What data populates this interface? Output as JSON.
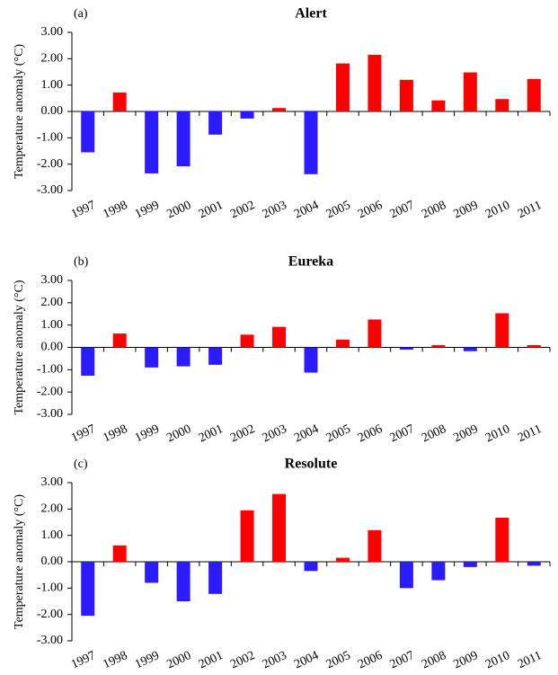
{
  "chart_data": [
    {
      "type": "bar",
      "label": "(a)",
      "title": "Alert",
      "y_label": "Temperature anomaly (°C)",
      "categories": [
        "1997",
        "1998",
        "1999",
        "2000",
        "2001",
        "2002",
        "2003",
        "2004",
        "2005",
        "2006",
        "2007",
        "2008",
        "2009",
        "2010",
        "2011"
      ],
      "values": [
        -1.55,
        0.72,
        -2.35,
        -2.08,
        -0.88,
        -0.27,
        0.13,
        -2.38,
        1.82,
        2.15,
        1.2,
        0.42,
        1.48,
        0.47,
        1.23
      ],
      "color_positive": "#ff0000",
      "color_negative": "#2b1cff",
      "ylim": [
        -3,
        3
      ],
      "yticks": [
        {
          "value": -3,
          "label": "-3.00"
        },
        {
          "value": -2,
          "label": "-2.00"
        },
        {
          "value": -1,
          "label": "-1.00"
        },
        {
          "value": 0,
          "label": "0.00"
        },
        {
          "value": 1,
          "label": "1.00"
        },
        {
          "value": 2,
          "label": "2.00"
        },
        {
          "value": 3,
          "label": "3.00"
        }
      ]
    },
    {
      "type": "bar",
      "label": "(b)",
      "title": "Eureka",
      "y_label": "Temperature anomaly (°C)",
      "categories": [
        "1997",
        "1998",
        "1999",
        "2000",
        "2001",
        "2002",
        "2003",
        "2004",
        "2005",
        "2006",
        "2007",
        "2008",
        "2009",
        "2010",
        "2011"
      ],
      "values": [
        -1.27,
        0.62,
        -0.9,
        -0.85,
        -0.78,
        0.57,
        0.92,
        -1.13,
        0.35,
        1.25,
        -0.1,
        0.1,
        -0.17,
        1.53,
        0.1
      ],
      "color_positive": "#ff0000",
      "color_negative": "#2b1cff",
      "ylim": [
        -3,
        3
      ],
      "yticks": [
        {
          "value": -3,
          "label": "-3.00"
        },
        {
          "value": -2,
          "label": "-2.00"
        },
        {
          "value": -1,
          "label": "-1.00"
        },
        {
          "value": 0,
          "label": "0.00"
        },
        {
          "value": 1,
          "label": "1.00"
        },
        {
          "value": 2,
          "label": "2.00"
        },
        {
          "value": 3,
          "label": "3.00"
        }
      ]
    },
    {
      "type": "bar",
      "label": "(c)",
      "title": "Resolute",
      "y_label": "Temperature anomaly (°C)",
      "categories": [
        "1997",
        "1998",
        "1999",
        "2000",
        "2001",
        "2002",
        "2003",
        "2004",
        "2005",
        "2006",
        "2007",
        "2008",
        "2009",
        "2010",
        "2011"
      ],
      "values": [
        -2.05,
        0.62,
        -0.8,
        -1.5,
        -1.22,
        1.95,
        2.57,
        -0.35,
        0.15,
        1.2,
        -1.0,
        -0.7,
        -0.2,
        1.67,
        -0.15
      ],
      "color_positive": "#ff0000",
      "color_negative": "#2b1cff",
      "ylim": [
        -3,
        3
      ],
      "yticks": [
        {
          "value": -3,
          "label": "-3.00"
        },
        {
          "value": -2,
          "label": "-2.00"
        },
        {
          "value": -1,
          "label": "-1.00"
        },
        {
          "value": 0,
          "label": "0.00"
        },
        {
          "value": 1,
          "label": "1.00"
        },
        {
          "value": 2,
          "label": "2.00"
        },
        {
          "value": 3,
          "label": "3.00"
        }
      ]
    }
  ]
}
